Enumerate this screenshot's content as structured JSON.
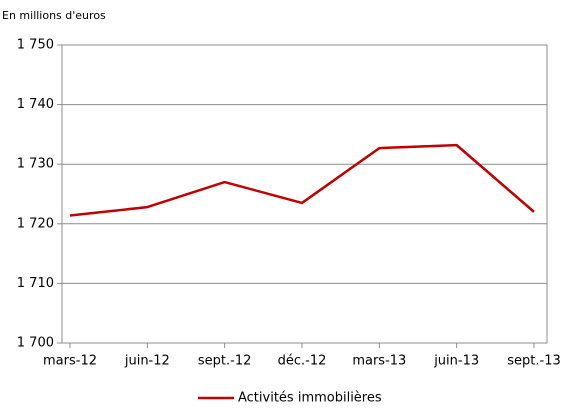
{
  "chart_data": {
    "type": "line",
    "subtitle": "En millions d'euros",
    "categories": [
      "mars-12",
      "juin-12",
      "sept.-12",
      "déc.-12",
      "mars-13",
      "juin-13",
      "sept.-13"
    ],
    "series": [
      {
        "name": "Activités immobilières",
        "color": "#c00000",
        "values": [
          1721.4,
          1722.8,
          1727.0,
          1723.5,
          1732.7,
          1733.2,
          1722.0
        ]
      }
    ],
    "ylim": [
      1700,
      1750
    ],
    "yticks": [
      {
        "value": 1700,
        "label": "1 700"
      },
      {
        "value": 1710,
        "label": "1 710"
      },
      {
        "value": 1720,
        "label": "1 720"
      },
      {
        "value": 1730,
        "label": "1 730"
      },
      {
        "value": 1740,
        "label": "1 740"
      },
      {
        "value": 1750,
        "label": "1 750"
      }
    ],
    "grid": true,
    "legend": "bottom"
  }
}
